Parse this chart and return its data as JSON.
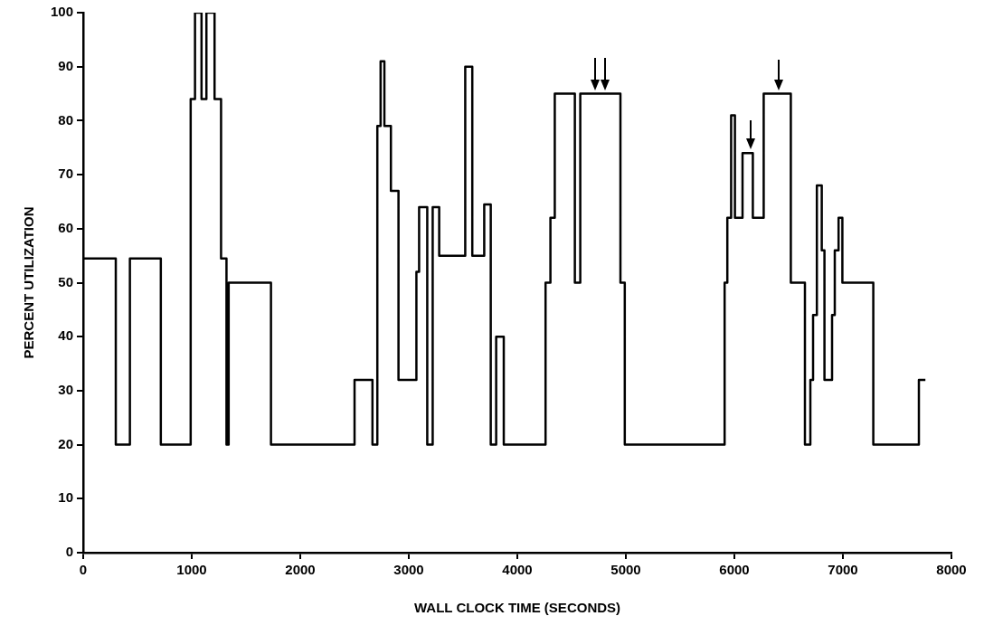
{
  "chart_data": {
    "type": "step",
    "xlabel": "WALL CLOCK TIME (SECONDS)",
    "ylabel": "PERCENT UTILIZATION",
    "xlim": [
      0,
      8000
    ],
    "xticks": [
      0,
      1000,
      2000,
      3000,
      4000,
      5000,
      6000,
      7000,
      8000
    ],
    "ylim": [
      0,
      100
    ],
    "yticks": [
      0,
      10,
      20,
      30,
      40,
      50,
      60,
      70,
      80,
      90,
      100
    ],
    "grid": false,
    "legend": false,
    "marker": "none",
    "line_style": "solid",
    "series": [
      {
        "color": "#000000",
        "x": [
          0,
          300,
          430,
          715,
          990,
          1030,
          1090,
          1135,
          1210,
          1270,
          1320,
          1340,
          1730,
          2500,
          2665,
          2710,
          2740,
          2775,
          2835,
          2905,
          3070,
          3095,
          3170,
          3220,
          3280,
          3520,
          3585,
          3695,
          3755,
          3805,
          3875,
          4260,
          4305,
          4345,
          4530,
          4580,
          4950,
          4990,
          5910,
          5935,
          5970,
          6005,
          6075,
          6170,
          6270,
          6520,
          6650,
          6700,
          6725,
          6760,
          6805,
          6830,
          6900,
          6925,
          6960,
          6995,
          7280,
          7700,
          7760
        ],
        "values": [
          54.5,
          20,
          54.5,
          20,
          84,
          100,
          84,
          100,
          84,
          54.5,
          20,
          50,
          20,
          32,
          20,
          79,
          91,
          79,
          67,
          32,
          52,
          64,
          20,
          64,
          55,
          90,
          55,
          64.5,
          20,
          40,
          20,
          50,
          62,
          85,
          50,
          85,
          50,
          20,
          50,
          62,
          81,
          62,
          74,
          62,
          85,
          50,
          20,
          32,
          44,
          68,
          56,
          32,
          44,
          56,
          62,
          50,
          20,
          32,
          32
        ]
      }
    ]
  }
}
